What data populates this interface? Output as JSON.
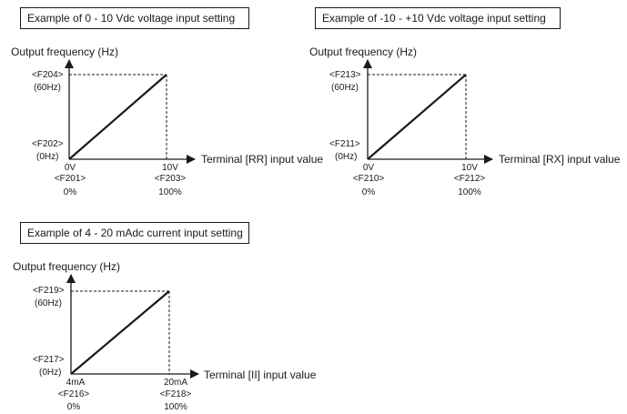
{
  "panels": [
    {
      "title": "Example of 0 - 10 Vdc voltage input setting",
      "y_axis_label": "Output frequency (Hz)",
      "x_axis_label": "Terminal [RR] input value",
      "y_top_param": "<F204>",
      "y_top_value": "(60Hz)",
      "y_bottom_param": "<F202>",
      "y_bottom_value": "(0Hz)",
      "x_left_value": "0V",
      "x_left_param": "<F201>",
      "x_left_pct": "0%",
      "x_right_value": "10V",
      "x_right_param": "<F203>",
      "x_right_pct": "100%"
    },
    {
      "title": "Example of -10 - +10 Vdc voltage input setting",
      "y_axis_label": "Output frequency (Hz)",
      "x_axis_label": "Terminal [RX] input value",
      "y_top_param": "<F213>",
      "y_top_value": "(60Hz)",
      "y_bottom_param": "<F211>",
      "y_bottom_value": "(0Hz)",
      "x_left_value": "0V",
      "x_left_param": "<F210>",
      "x_left_pct": "0%",
      "x_right_value": "10V",
      "x_right_param": "<F212>",
      "x_right_pct": "100%"
    },
    {
      "title": "Example of 4 - 20 mAdc current input setting",
      "y_axis_label": "Output frequency (Hz)",
      "x_axis_label": "Terminal [II] input value",
      "y_top_param": "<F219>",
      "y_top_value": "(60Hz)",
      "y_bottom_param": "<F217>",
      "y_bottom_value": "(0Hz)",
      "x_left_value": "4mA",
      "x_left_param": "<F216>",
      "x_left_pct": "0%",
      "x_right_value": "20mA",
      "x_right_param": "<F218>",
      "x_right_pct": "100%"
    }
  ]
}
